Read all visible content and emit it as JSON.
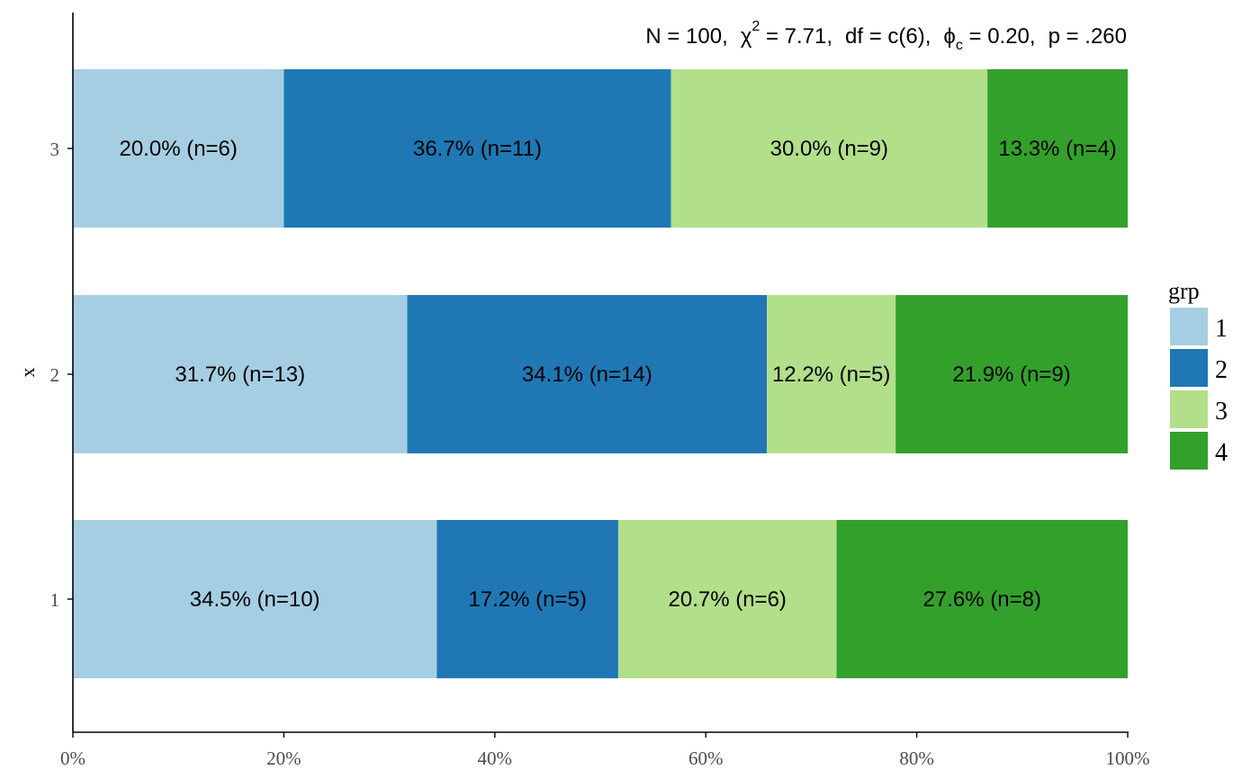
{
  "chart_data": {
    "type": "bar",
    "orientation": "horizontal",
    "stacked": true,
    "subtitle": {
      "n": "N = 100,",
      "chi": "χ",
      "chi_sup": "2",
      "chi_val": " = 7.71,",
      "df": "df = c(6),",
      "phi": "ϕ",
      "phi_sub": "c",
      "phi_val": " = 0.20,",
      "p": "p = .260"
    },
    "ylabel": "x",
    "xlim": [
      0,
      100
    ],
    "x_ticks": [
      "0%",
      "20%",
      "40%",
      "60%",
      "80%",
      "100%"
    ],
    "categories": [
      "1",
      "2",
      "3"
    ],
    "series": [
      {
        "name": "1",
        "color": "#a6cee3",
        "values": [
          34.5,
          31.7,
          20.0
        ],
        "labels": [
          "34.5% (n=10)",
          "31.7% (n=13)",
          "20.0% (n=6)"
        ]
      },
      {
        "name": "2",
        "color": "#1f78b4",
        "values": [
          17.2,
          34.1,
          36.7
        ],
        "labels": [
          "17.2% (n=5)",
          "34.1% (n=14)",
          "36.7% (n=11)"
        ]
      },
      {
        "name": "3",
        "color": "#b2df8a",
        "values": [
          20.7,
          12.2,
          30.0
        ],
        "labels": [
          "20.7% (n=6)",
          "12.2% (n=5)",
          "30.0% (n=9)"
        ]
      },
      {
        "name": "4",
        "color": "#33a02c",
        "values": [
          27.6,
          21.9,
          13.3
        ],
        "labels": [
          "27.6% (n=8)",
          "21.9% (n=9)",
          "13.3% (n=4)"
        ]
      }
    ],
    "legend": {
      "title": "grp",
      "position": "right"
    },
    "grid": false
  }
}
